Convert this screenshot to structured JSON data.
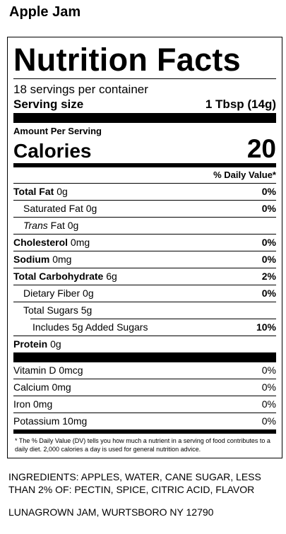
{
  "product_name": "Apple Jam",
  "label": {
    "title": "Nutrition Facts",
    "servings": "18 servings per container",
    "serving_size": {
      "label": "Serving size",
      "value": "1 Tbsp (14g)"
    },
    "amount_per_serving": "Amount Per Serving",
    "calories": {
      "label": "Calories",
      "value": "20"
    },
    "daily_value_header": "% Daily Value*",
    "nutrients": [
      {
        "name": "Total Fat",
        "amount": "0g",
        "dv": "0%"
      },
      {
        "name": "Saturated Fat",
        "amount": "0g",
        "dv": "0%"
      },
      {
        "name_italic": "Trans",
        "name": "Fat",
        "amount": "0g"
      },
      {
        "name": "Cholesterol",
        "amount": "0mg",
        "dv": "0%"
      },
      {
        "name": "Sodium",
        "amount": "0mg",
        "dv": "0%"
      },
      {
        "name": "Total Carbohydrate",
        "amount": "6g",
        "dv": "2%"
      },
      {
        "name": "Dietary Fiber",
        "amount": "0g",
        "dv": "0%"
      },
      {
        "name": "Total Sugars",
        "amount": "5g"
      },
      {
        "name": "Includes 5g Added Sugars",
        "dv": "10%"
      },
      {
        "name": "Protein",
        "amount": "0g"
      }
    ],
    "vitamins": [
      {
        "name": "Vitamin D",
        "amount": "0mcg",
        "dv": "0%"
      },
      {
        "name": "Calcium",
        "amount": "0mg",
        "dv": "0%"
      },
      {
        "name": "Iron",
        "amount": "0mg",
        "dv": "0%"
      },
      {
        "name": "Potassium",
        "amount": "10mg",
        "dv": "0%"
      }
    ],
    "footnote": "* The % Daily Value (DV) tells you how much a nutrient in a serving of food contributes to a daily diet. 2,000 calories a day is used for general nutrition advice."
  },
  "ingredients": "INGREDIENTS: APPLES, WATER, CANE SUGAR, LESS THAN 2% OF: PECTIN, SPICE, CITRIC ACID, FLAVOR",
  "manufacturer": "LUNAGROWN JAM, WURTSBORO NY 12790"
}
